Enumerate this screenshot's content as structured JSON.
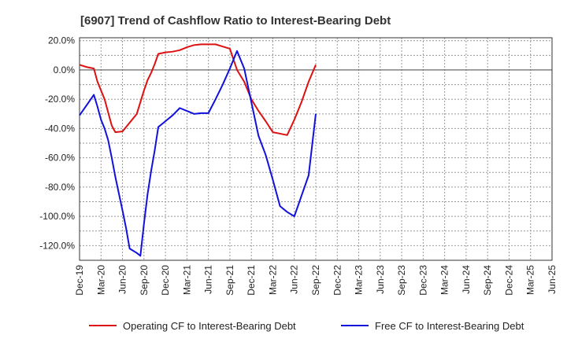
{
  "chart_data": {
    "type": "line",
    "title": "[6907]  Trend of Cashflow Ratio to Interest-Bearing Debt",
    "xlabel": "",
    "ylabel": "",
    "ylim": [
      -130,
      22
    ],
    "y_ticks": [
      20,
      0,
      -20,
      -40,
      -60,
      -80,
      -100,
      -120
    ],
    "y_tick_labels": [
      "20.0%",
      "0.0%",
      "-20.0%",
      "-40.0%",
      "-60.0%",
      "-80.0%",
      "-100.0%",
      "-120.0%"
    ],
    "x_tick_labels": [
      "Dec-19",
      "Mar-20",
      "Jun-20",
      "Sep-20",
      "Dec-20",
      "Mar-21",
      "Jun-21",
      "Sep-21",
      "Dec-21",
      "Mar-22",
      "Jun-22",
      "Sep-22",
      "Dec-22",
      "Mar-23",
      "Jun-23",
      "Sep-23",
      "Dec-23",
      "Mar-24",
      "Jun-24",
      "Sep-24",
      "Dec-24",
      "Mar-25",
      "Jun-25"
    ],
    "grid": true,
    "legend_position": "bottom",
    "colors": {
      "operating": "#dd1111",
      "free": "#1111dd"
    },
    "series": [
      {
        "name": "Operating CF to Interest-Bearing Debt",
        "color": "#dd1111",
        "points": [
          [
            0,
            3.5
          ],
          [
            1,
            2.0
          ],
          [
            2,
            1.0
          ],
          [
            2.5,
            -8
          ],
          [
            3,
            -14
          ],
          [
            3.5,
            -20
          ],
          [
            4,
            -29
          ],
          [
            4.5,
            -38
          ],
          [
            5,
            -42.5
          ],
          [
            6,
            -42
          ],
          [
            7,
            -36
          ],
          [
            8,
            -30
          ],
          [
            8.5,
            -22
          ],
          [
            9,
            -14
          ],
          [
            9.5,
            -7
          ],
          [
            10,
            -2
          ],
          [
            10.5,
            4
          ],
          [
            11,
            11
          ],
          [
            12,
            12
          ],
          [
            13,
            12.5
          ],
          [
            14,
            13.5
          ],
          [
            15,
            15.5
          ],
          [
            16,
            17
          ],
          [
            17,
            17.5
          ],
          [
            18,
            17.5
          ],
          [
            19,
            17.5
          ],
          [
            20,
            16
          ],
          [
            21,
            14.5
          ],
          [
            22,
            0
          ],
          [
            23,
            -8
          ],
          [
            24,
            -20
          ],
          [
            25,
            -28
          ],
          [
            26,
            -35
          ],
          [
            27,
            -42.5
          ],
          [
            28,
            -43.5
          ],
          [
            29,
            -44.5
          ],
          [
            30,
            -34
          ],
          [
            31,
            -22
          ],
          [
            32,
            -8
          ],
          [
            33,
            3.5
          ]
        ]
      },
      {
        "name": "Free CF to Interest-Bearing Debt",
        "color": "#1111dd",
        "points": [
          [
            0,
            -31
          ],
          [
            1,
            -24
          ],
          [
            2,
            -17
          ],
          [
            2.5,
            -25
          ],
          [
            3,
            -34
          ],
          [
            3.5,
            -40
          ],
          [
            4,
            -48
          ],
          [
            4.5,
            -60
          ],
          [
            5,
            -73
          ],
          [
            6,
            -96
          ],
          [
            6.5,
            -108
          ],
          [
            7,
            -122
          ],
          [
            8,
            -125
          ],
          [
            8.5,
            -127
          ],
          [
            9,
            -105
          ],
          [
            9.5,
            -85
          ],
          [
            10,
            -69
          ],
          [
            10.5,
            -55
          ],
          [
            11,
            -39
          ],
          [
            12,
            -35
          ],
          [
            13,
            -31
          ],
          [
            14,
            -26
          ],
          [
            15,
            -28
          ],
          [
            16,
            -30
          ],
          [
            17,
            -29.5
          ],
          [
            18,
            -29.5
          ],
          [
            19,
            -20
          ],
          [
            20,
            -10
          ],
          [
            21,
            1
          ],
          [
            22,
            13
          ],
          [
            23,
            1
          ],
          [
            24,
            -22
          ],
          [
            25,
            -45
          ],
          [
            26,
            -58
          ],
          [
            27,
            -75
          ],
          [
            28,
            -93
          ],
          [
            29,
            -97
          ],
          [
            30,
            -100
          ],
          [
            31,
            -86
          ],
          [
            32,
            -72
          ],
          [
            33,
            -30
          ]
        ]
      }
    ]
  }
}
